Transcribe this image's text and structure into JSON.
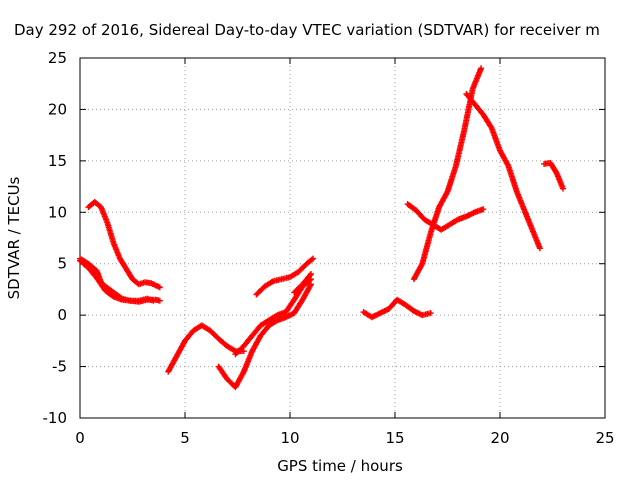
{
  "chart_data": {
    "type": "scatter",
    "title": "Day 292 of 2016, Sidereal Day-to-day VTEC variation (SDTVAR) for receiver m",
    "xlabel": "GPS time / hours",
    "ylabel": "SDTVAR / TECUs",
    "xlim": [
      0,
      25
    ],
    "ylim": [
      -10,
      25
    ],
    "xticks": [
      "0",
      "5",
      "10",
      "15",
      "20",
      "25"
    ],
    "yticks": [
      "-10",
      "-5",
      "0",
      "5",
      "10",
      "15",
      "20",
      "25"
    ],
    "grid": true,
    "marker": "plus",
    "color": "#ff0000",
    "series": [
      {
        "x": [
          0.0,
          0.4,
          0.8,
          1.2,
          1.6,
          2.0,
          2.4,
          2.8,
          3.2,
          3.5
        ],
        "y": [
          5.3,
          4.6,
          3.6,
          2.4,
          1.8,
          1.5,
          1.4,
          1.4,
          1.6,
          1.4
        ]
      },
      {
        "x": [
          0.0,
          0.4,
          0.8,
          1.0,
          1.2,
          1.6,
          2.0,
          2.4,
          2.8,
          3.2,
          3.6,
          3.8
        ],
        "y": [
          5.5,
          5.0,
          4.3,
          3.2,
          2.8,
          2.2,
          1.6,
          1.4,
          1.3,
          1.5,
          1.5,
          1.4
        ]
      },
      {
        "x": [
          0.4,
          0.7,
          1.0,
          1.3,
          1.6,
          1.9,
          2.2,
          2.5,
          2.8,
          3.1,
          3.4,
          3.8
        ],
        "y": [
          10.5,
          11.0,
          10.5,
          9.0,
          7.0,
          5.5,
          4.5,
          3.5,
          3.0,
          3.2,
          3.1,
          2.7
        ]
      },
      {
        "x": [
          4.2,
          4.6,
          5.0,
          5.4,
          5.8,
          6.2,
          6.6,
          7.0,
          7.4,
          7.8
        ],
        "y": [
          -5.5,
          -4.0,
          -2.5,
          -1.5,
          -1.0,
          -1.5,
          -2.3,
          -3.0,
          -3.5,
          -3.5
        ]
      },
      {
        "x": [
          6.6,
          7.0,
          7.4,
          7.8,
          8.2,
          8.6,
          9.0,
          9.4,
          9.8,
          10.2,
          10.6,
          11.0
        ],
        "y": [
          -5.0,
          -6.2,
          -7.0,
          -5.5,
          -3.5,
          -2.0,
          -1.0,
          -0.5,
          -0.2,
          0.2,
          1.5,
          3.0
        ]
      },
      {
        "x": [
          7.4,
          7.8,
          8.2,
          8.6,
          9.0,
          9.4,
          9.8,
          10.2,
          10.6,
          11.0
        ],
        "y": [
          -3.8,
          -3.0,
          -2.0,
          -1.0,
          -0.5,
          0.0,
          0.3,
          1.5,
          2.8,
          3.5
        ]
      },
      {
        "x": [
          8.4,
          8.8,
          9.2,
          9.6,
          10.0,
          10.4,
          10.8,
          11.1
        ],
        "y": [
          2.0,
          2.8,
          3.3,
          3.5,
          3.7,
          4.2,
          5.0,
          5.5
        ]
      },
      {
        "x": [
          10.2,
          10.6,
          11.0
        ],
        "y": [
          2.2,
          3.0,
          4.0
        ]
      },
      {
        "x": [
          13.5,
          13.9,
          14.3,
          14.7,
          15.1,
          15.5,
          15.9,
          16.3,
          16.7
        ],
        "y": [
          0.3,
          -0.2,
          0.2,
          0.6,
          1.5,
          1.0,
          0.4,
          0.0,
          0.2
        ]
      },
      {
        "x": [
          15.6,
          16.0,
          16.4,
          16.8,
          17.2,
          17.6,
          18.0,
          18.4,
          18.8,
          19.2
        ],
        "y": [
          10.8,
          10.2,
          9.3,
          8.8,
          8.3,
          8.8,
          9.3,
          9.6,
          10.0,
          10.3
        ]
      },
      {
        "x": [
          15.9,
          16.3,
          16.7,
          17.1,
          17.5,
          17.9,
          18.3,
          18.7,
          19.1
        ],
        "y": [
          3.5,
          5.0,
          8.0,
          10.5,
          12.0,
          14.5,
          18.0,
          22.0,
          24.0
        ]
      },
      {
        "x": [
          18.4,
          18.8,
          19.2,
          19.6,
          20.0,
          20.4,
          20.8,
          21.2,
          21.6,
          21.9
        ],
        "y": [
          21.5,
          20.5,
          19.5,
          18.2,
          16.0,
          14.5,
          12.0,
          10.0,
          8.0,
          6.5
        ]
      },
      {
        "x": [
          22.1,
          22.4,
          22.7,
          23.0
        ],
        "y": [
          14.7,
          14.8,
          13.8,
          12.3
        ]
      }
    ]
  }
}
